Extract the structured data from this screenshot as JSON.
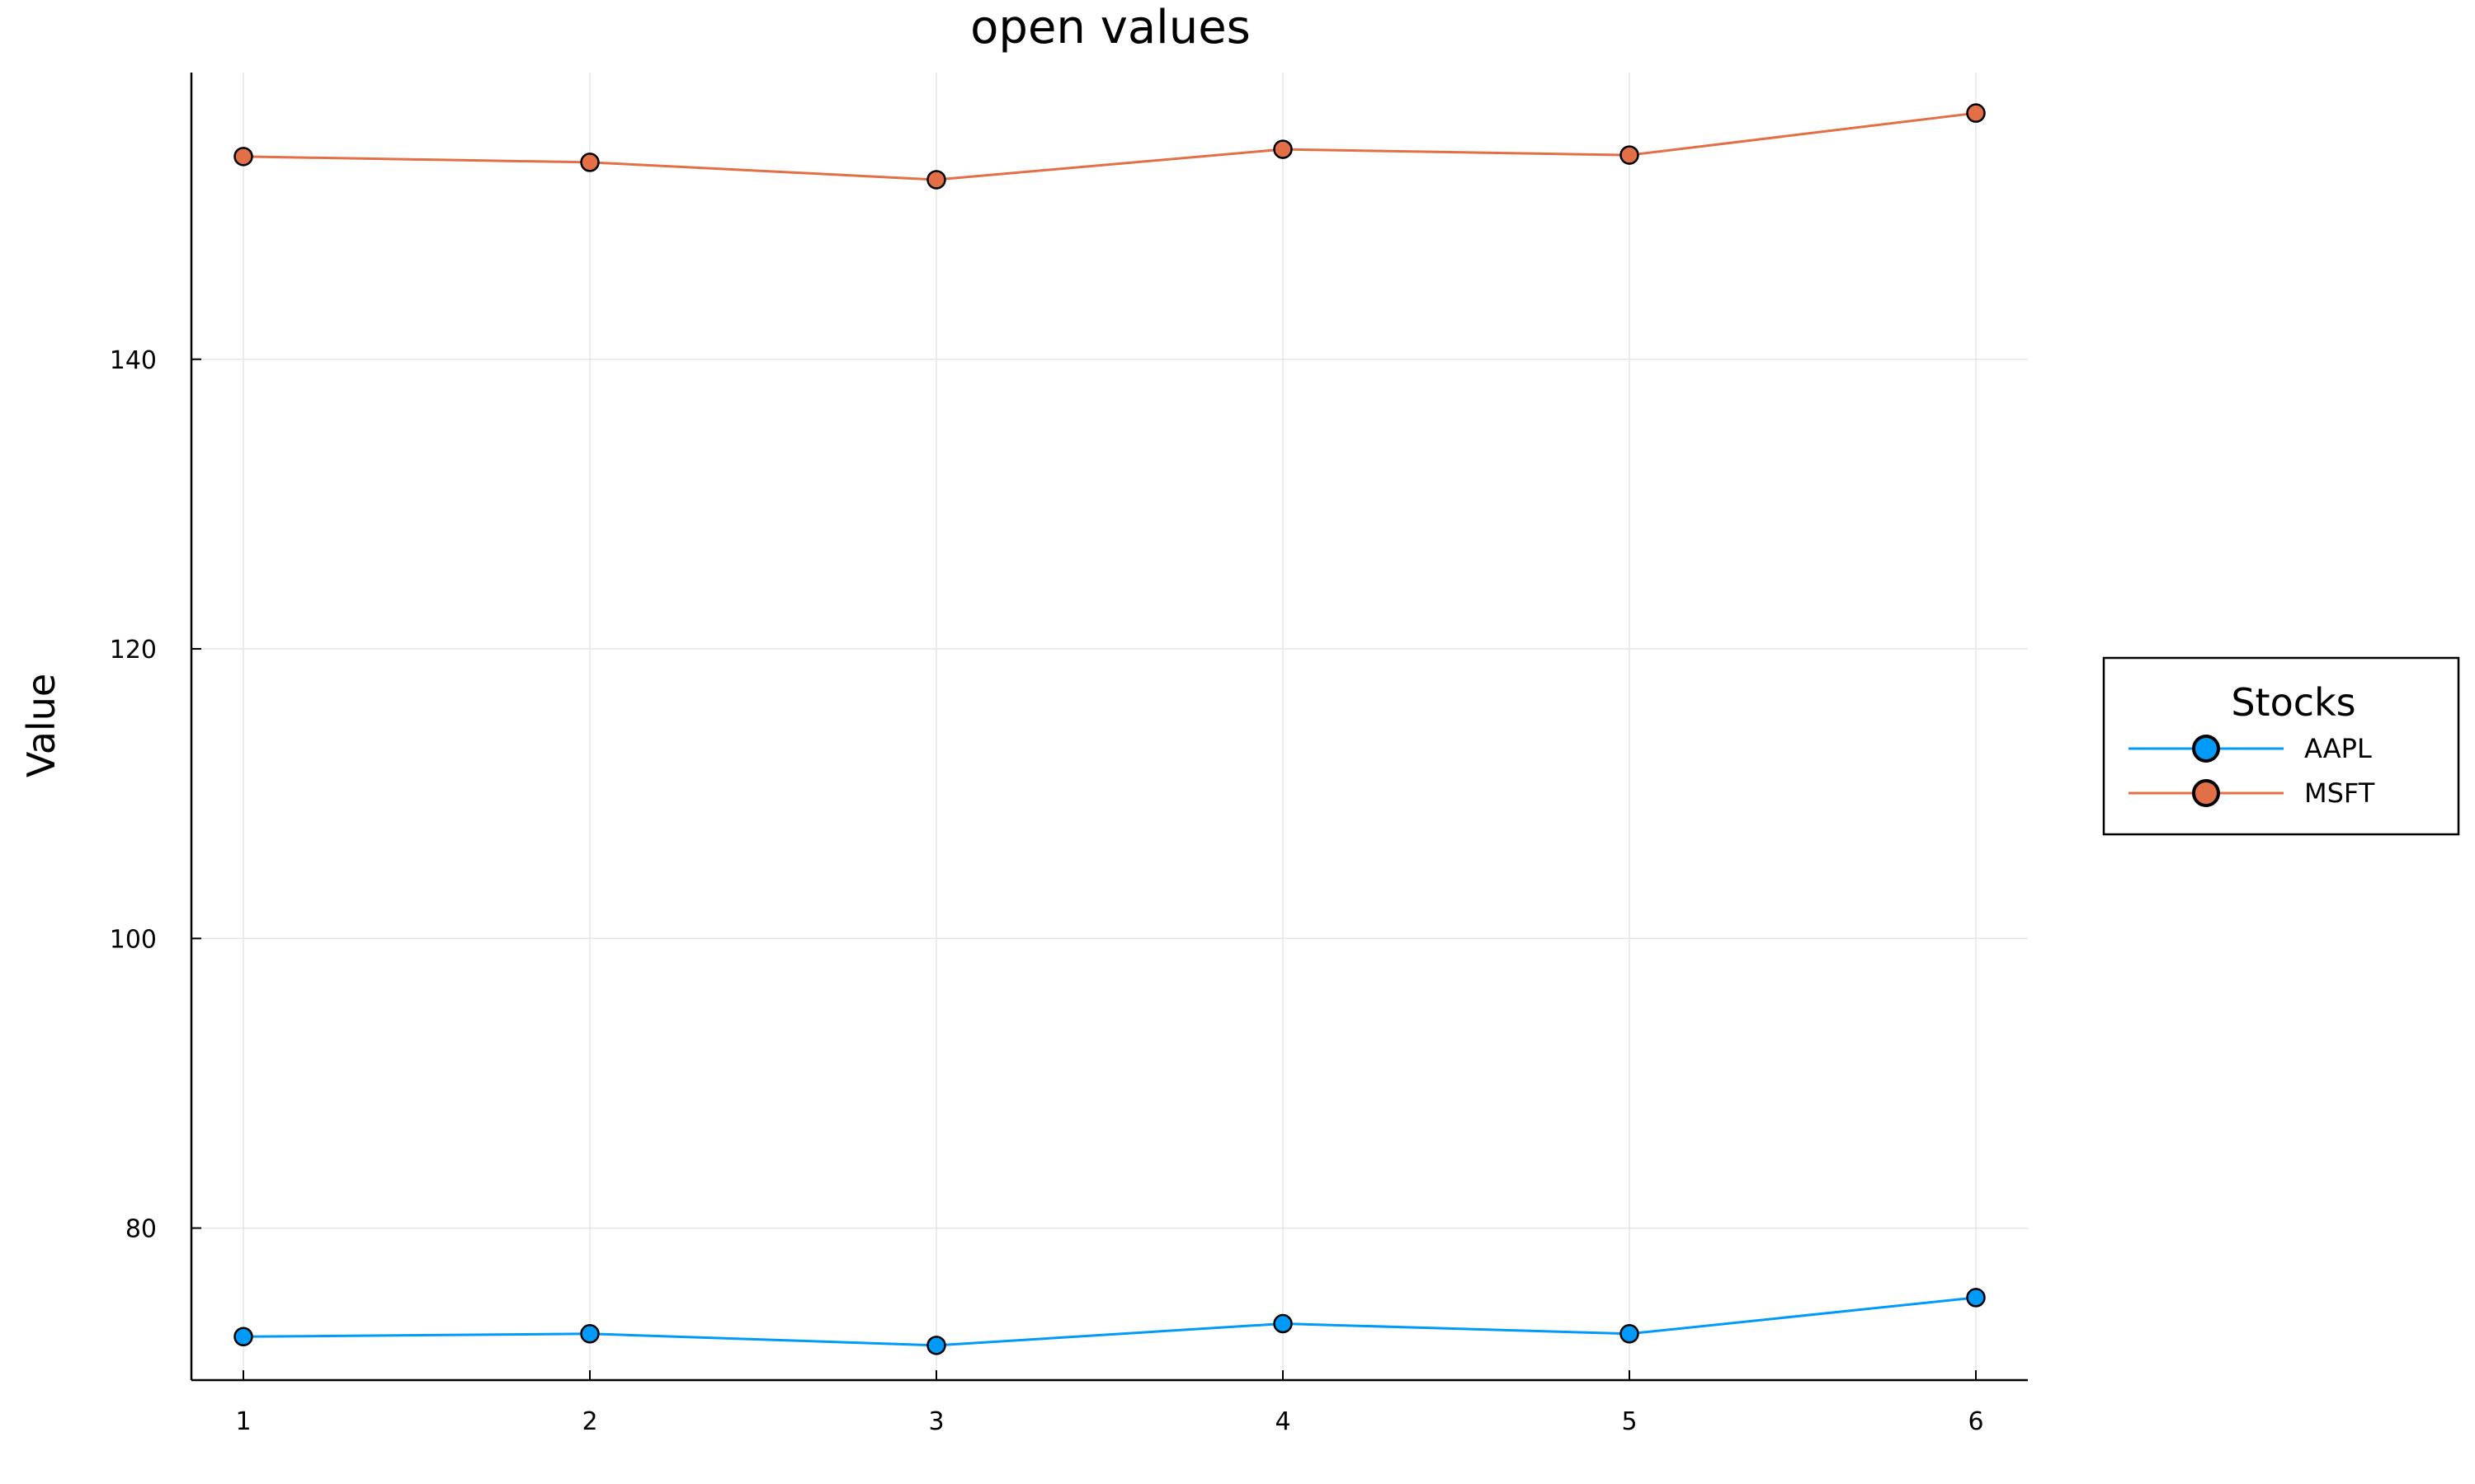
{
  "chart_data": {
    "type": "line",
    "title": "open values",
    "xlabel": "",
    "ylabel": "Value",
    "x": [
      1,
      2,
      3,
      4,
      5,
      6
    ],
    "xticks": [
      "1",
      "2",
      "3",
      "4",
      "5",
      "6"
    ],
    "yticks": [
      "80",
      "100",
      "120",
      "140"
    ],
    "ytick_values": [
      80,
      100,
      120,
      140
    ],
    "xlim": [
      0.85,
      6.15
    ],
    "ylim": [
      69.5,
      159.8
    ],
    "grid": true,
    "markers": true,
    "legend": {
      "title": "Stocks",
      "placement": "outside-right"
    },
    "series": [
      {
        "name": "AAPL",
        "color": "#009AFA",
        "values": [
          72.5,
          72.7,
          71.9,
          73.4,
          72.7,
          75.2
        ]
      },
      {
        "name": "MSFT",
        "color": "#E36F47",
        "values": [
          154.0,
          153.6,
          152.4,
          154.5,
          154.1,
          157.0
        ]
      }
    ]
  }
}
